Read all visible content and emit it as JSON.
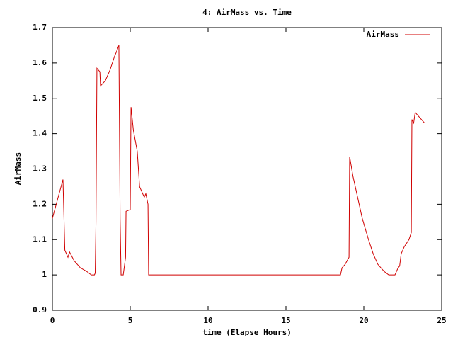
{
  "chart_data": {
    "type": "line",
    "title": "4: AirMass vs. Time",
    "xlabel": "time (Elapse Hours)",
    "ylabel": "AirMass",
    "x": [
      0,
      0.68,
      0.8,
      1.0,
      1.1,
      1.4,
      1.8,
      2.2,
      2.5,
      2.7,
      2.75,
      2.8,
      2.86,
      3.05,
      3.09,
      3.4,
      3.7,
      4.0,
      4.1,
      4.27,
      4.35,
      4.41,
      4.55,
      4.7,
      4.73,
      5.0,
      5.05,
      5.2,
      5.45,
      5.6,
      5.8,
      5.9,
      6.0,
      6.14,
      6.18,
      18.5,
      18.6,
      18.8,
      19.05,
      19.09,
      19.3,
      19.6,
      19.9,
      20.3,
      20.6,
      20.9,
      21.3,
      21.6,
      22.0,
      22.2,
      22.3,
      22.4,
      22.6,
      22.9,
      23.05,
      23.09,
      23.2,
      23.3,
      23.5,
      23.7,
      23.9
    ],
    "series": [
      {
        "name": "AirMass",
        "color": "#d00000",
        "values": [
          1.16,
          1.27,
          1.07,
          1.05,
          1.065,
          1.04,
          1.02,
          1.01,
          1.0,
          1.0,
          1.005,
          1.15,
          1.585,
          1.575,
          1.535,
          1.55,
          1.58,
          1.62,
          1.63,
          1.65,
          1.16,
          1.0,
          1.0,
          1.05,
          1.18,
          1.185,
          1.475,
          1.41,
          1.35,
          1.25,
          1.23,
          1.22,
          1.23,
          1.2,
          1.0,
          1.0,
          1.02,
          1.03,
          1.05,
          1.335,
          1.28,
          1.22,
          1.16,
          1.1,
          1.06,
          1.03,
          1.01,
          1.0,
          1.0,
          1.02,
          1.025,
          1.06,
          1.08,
          1.1,
          1.12,
          1.44,
          1.43,
          1.46,
          1.45,
          1.44,
          1.43
        ]
      }
    ],
    "xlim": [
      0,
      25
    ],
    "xticks": [
      0,
      5,
      10,
      15,
      20,
      25
    ],
    "ylim": [
      0.9,
      1.7
    ],
    "yticks": [
      0.9,
      1,
      1.1,
      1.2,
      1.3,
      1.4,
      1.5,
      1.6,
      1.7
    ],
    "grid": false,
    "legend": "top-right"
  }
}
